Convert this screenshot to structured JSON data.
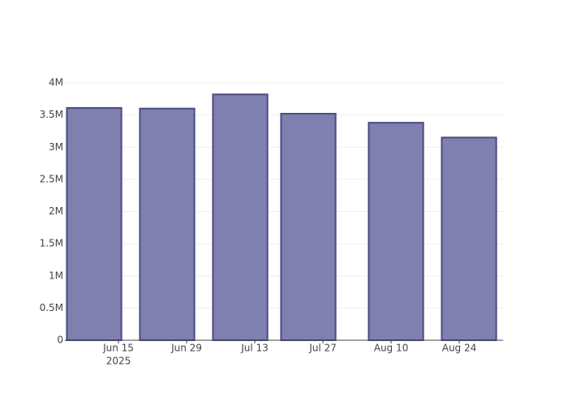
{
  "chart_data": {
    "type": "bar",
    "x": [
      "2025-06-10",
      "2025-06-25",
      "2025-07-10",
      "2025-07-24",
      "2025-08-11",
      "2025-08-26"
    ],
    "values": [
      3610000,
      3600000,
      3820000,
      3520000,
      3380000,
      3150000
    ],
    "color": "#7f7fb0",
    "edge_color": "#4b4b80",
    "xlim": [
      "2025-06-04",
      "2025-09-02"
    ],
    "xticks": [
      {
        "value": "2025-06-15",
        "label": "Jun 15"
      },
      {
        "value": "2025-06-29",
        "label": "Jun 29"
      },
      {
        "value": "2025-07-13",
        "label": "Jul 13"
      },
      {
        "value": "2025-07-27",
        "label": "Jul 27"
      },
      {
        "value": "2025-08-10",
        "label": "Aug 10"
      },
      {
        "value": "2025-08-24",
        "label": "Aug 24"
      }
    ],
    "xtick_year": "2025",
    "ylim": [
      0,
      4000000
    ],
    "yticks": [
      0,
      {
        "value": 500000,
        "label": "0.5M"
      },
      {
        "value": 1000000,
        "label": "1M"
      },
      {
        "value": 1500000,
        "label": "1.5M"
      },
      {
        "value": 2000000,
        "label": "2M"
      },
      {
        "value": 2500000,
        "label": "2.5M"
      },
      {
        "value": 3000000,
        "label": "3M"
      },
      {
        "value": 3500000,
        "label": "3.5M"
      },
      {
        "value": 4000000,
        "label": "4M"
      }
    ],
    "grid": true
  }
}
